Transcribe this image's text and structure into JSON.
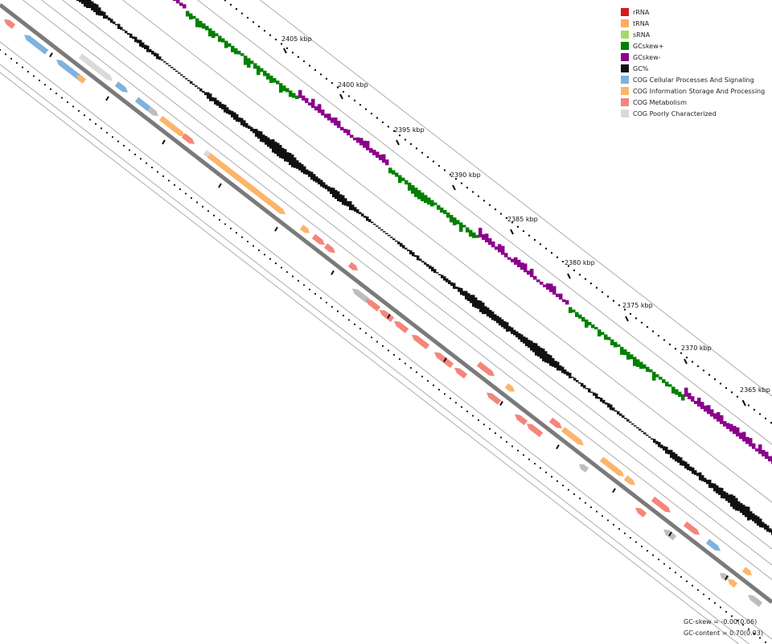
{
  "legend": {
    "items": [
      {
        "label": "rRNA",
        "color": "#d7191c"
      },
      {
        "label": "tRNA",
        "color": "#fdae61"
      },
      {
        "label": "sRNA",
        "color": "#a6d96a"
      },
      {
        "label": "GCskew+",
        "color": "#008000"
      },
      {
        "label": "GCskew-",
        "color": "#8b008b"
      },
      {
        "label": "GC%",
        "color": "#111111"
      },
      {
        "label": "COG Cellular Processes And Signaling",
        "color": "#7fb2dc"
      },
      {
        "label": "COG Information Storage And Processing",
        "color": "#fdb46a"
      },
      {
        "label": "COG Metabolism",
        "color": "#f4857a"
      },
      {
        "label": "COG Poorly Characterized",
        "color": "#d9d9d9"
      }
    ]
  },
  "scale": {
    "tick_labels": [
      "2405 kbp",
      "2400 kbp",
      "2395 kbp",
      "2390 kbp",
      "2385 kbp",
      "2380 kbp",
      "2375 kbp",
      "2370 kbp",
      "2365 kbp"
    ]
  },
  "stats": {
    "gc_skew": "GC-skew = -0.00(0.06)",
    "gc_content": "GC-content = 0.70(0.03)"
  }
}
